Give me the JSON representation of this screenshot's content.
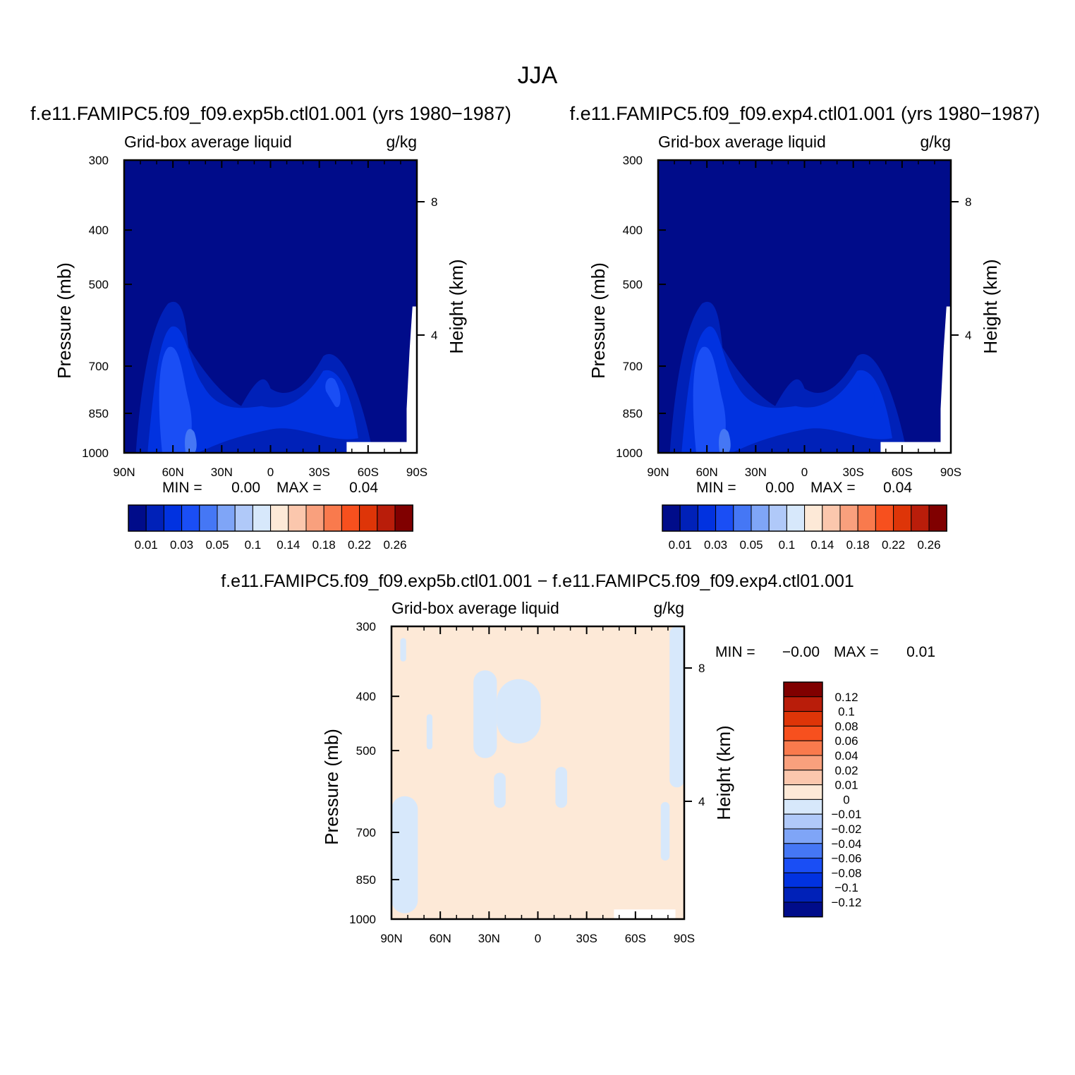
{
  "figure": {
    "season": "JJA",
    "colors": {
      "blues": [
        "#000c8a",
        "#0021b8",
        "#0132e0",
        "#1a4ef5",
        "#4577f5",
        "#7fa5f7",
        "#b0c9f9",
        "#d7e8fb"
      ],
      "reds": [
        "#fde9d7",
        "#fbc7ad",
        "#f9a07d",
        "#f97a4d",
        "#f7501e",
        "#de3508",
        "#b91d0a",
        "#800000"
      ],
      "missing": "#ffffff"
    }
  },
  "chart_data": [
    {
      "type": "heatmap",
      "id": "panel-exp5b",
      "title": "f.e11.FAMIPC5.f09_f09.exp5b.ctl01.001 (yrs 1980-1987)",
      "variable": "Grid-box average liquid",
      "units": "g/kg",
      "xlabel": "",
      "x_ticks": [
        "90N",
        "60N",
        "30N",
        "0",
        "30S",
        "60S",
        "90S"
      ],
      "x_range": [
        90,
        -90
      ],
      "ylabel": "Pressure (mb)",
      "y_ticks": [
        300,
        400,
        500,
        700,
        850,
        1000
      ],
      "y_range": [
        300,
        1000
      ],
      "y_scale": "log",
      "y2label": "Height (km)",
      "y2_ticks": [
        8,
        4
      ],
      "stats": {
        "min_label": "MIN =",
        "min": "0.00",
        "max_label": "MAX =",
        "max": "0.04"
      },
      "colorbar": {
        "orientation": "horizontal",
        "levels": [
          "0.01",
          "0.03",
          "0.05",
          "0.1",
          "0.14",
          "0.18",
          "0.22",
          "0.26"
        ],
        "n_colors": 16
      }
    },
    {
      "type": "heatmap",
      "id": "panel-exp4",
      "title": "f.e11.FAMIPC5.f09_f09.exp4.ctl01.001 (yrs 1980-1987)",
      "variable": "Grid-box average liquid",
      "units": "g/kg",
      "xlabel": "",
      "x_ticks": [
        "90N",
        "60N",
        "30N",
        "0",
        "30S",
        "60S",
        "90S"
      ],
      "x_range": [
        90,
        -90
      ],
      "ylabel": "Pressure (mb)",
      "y_ticks": [
        300,
        400,
        500,
        700,
        850,
        1000
      ],
      "y_range": [
        300,
        1000
      ],
      "y_scale": "log",
      "y2label": "Height (km)",
      "y2_ticks": [
        8,
        4
      ],
      "stats": {
        "min_label": "MIN =",
        "min": "0.00",
        "max_label": "MAX =",
        "max": "0.04"
      },
      "colorbar": {
        "orientation": "horizontal",
        "levels": [
          "0.01",
          "0.03",
          "0.05",
          "0.1",
          "0.14",
          "0.18",
          "0.22",
          "0.26"
        ],
        "n_colors": 16
      }
    },
    {
      "type": "heatmap",
      "id": "panel-diff",
      "title": "f.e11.FAMIPC5.f09_f09.exp5b.ctl01.001 - f.e11.FAMIPC5.f09_f09.exp4.ctl01.001",
      "variable": "Grid-box average liquid",
      "units": "g/kg",
      "xlabel": "",
      "x_ticks": [
        "90N",
        "60N",
        "30N",
        "0",
        "30S",
        "60S",
        "90S"
      ],
      "x_range": [
        90,
        -90
      ],
      "ylabel": "Pressure (mb)",
      "y_ticks": [
        300,
        400,
        500,
        700,
        850,
        1000
      ],
      "y_range": [
        300,
        1000
      ],
      "y_scale": "log",
      "y2label": "Height (km)",
      "y2_ticks": [
        8,
        4
      ],
      "stats": {
        "min_label": "MIN =",
        "min": "-0.00",
        "max_label": "MAX =",
        "max": "0.01"
      },
      "colorbar": {
        "orientation": "vertical",
        "levels": [
          "0.12",
          "0.1",
          "0.08",
          "0.06",
          "0.04",
          "0.02",
          "0.01",
          "0",
          "-0.01",
          "-0.02",
          "-0.04",
          "-0.06",
          "-0.08",
          "-0.1",
          "-0.12"
        ],
        "n_colors": 16
      }
    }
  ]
}
